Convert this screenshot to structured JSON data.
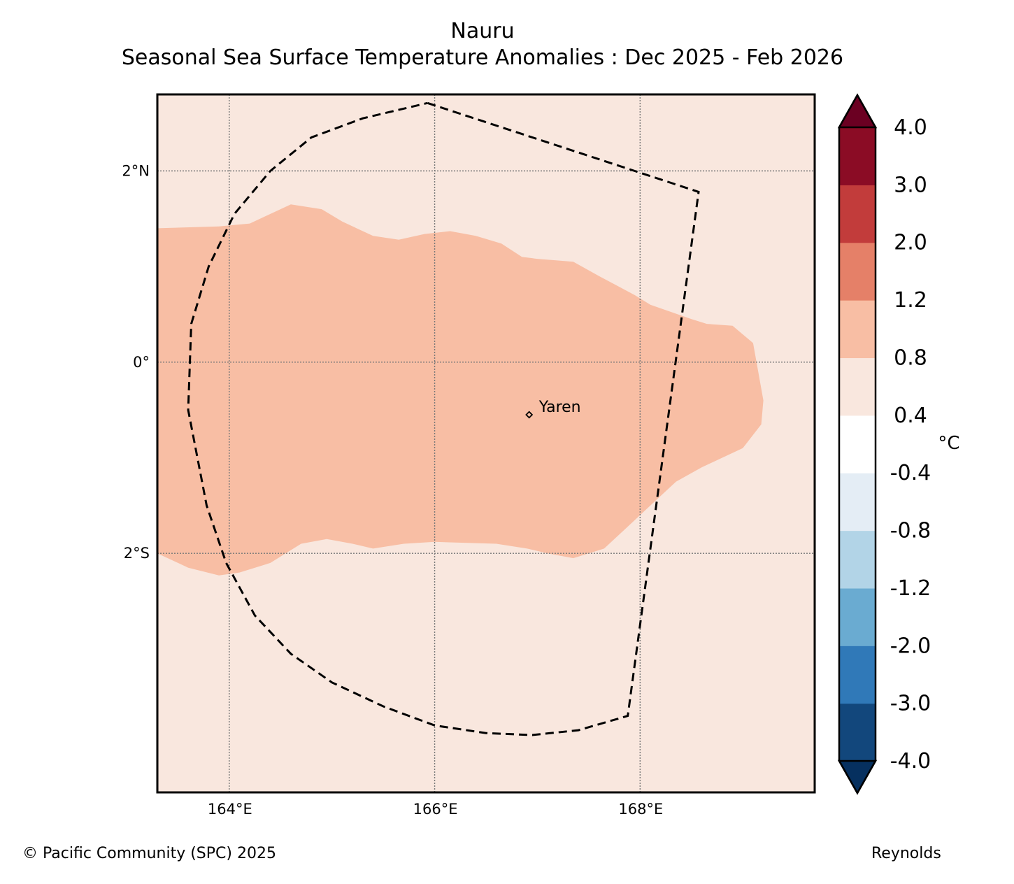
{
  "title": {
    "line1": "Nauru",
    "line2": "Seasonal Sea Surface Temperature Anomalies : Dec 2025 - Feb 2026"
  },
  "map": {
    "extent": {
      "lon": [
        163.3,
        169.7
      ],
      "lat": [
        -4.5,
        2.8
      ]
    },
    "lat_ticks": [
      {
        "value": 2,
        "label": "2°N"
      },
      {
        "value": 0,
        "label": "0°"
      },
      {
        "value": -2,
        "label": "2°S"
      }
    ],
    "lon_ticks": [
      {
        "value": 164,
        "label": "164°E"
      },
      {
        "value": 166,
        "label": "166°E"
      },
      {
        "value": 168,
        "label": "168°E"
      }
    ],
    "background_anomaly_class": "0.4 – 0.8",
    "anomaly_region_class": "0.8 – 1.2",
    "city": {
      "name": "Yaren",
      "lon": 166.92,
      "lat": -0.55
    },
    "eez_polygon": [
      [
        165.93,
        2.71
      ],
      [
        168.57,
        1.78
      ],
      [
        167.88,
        -3.7
      ],
      [
        167.4,
        -3.85
      ],
      [
        166.95,
        -3.9
      ],
      [
        166.5,
        -3.88
      ],
      [
        166.0,
        -3.8
      ],
      [
        165.5,
        -3.6
      ],
      [
        165.0,
        -3.35
      ],
      [
        164.6,
        -3.05
      ],
      [
        164.25,
        -2.65
      ],
      [
        163.97,
        -2.1
      ],
      [
        163.78,
        -1.5
      ],
      [
        163.6,
        -0.5
      ],
      [
        163.63,
        0.4
      ],
      [
        163.8,
        1.0
      ],
      [
        164.05,
        1.55
      ],
      [
        164.4,
        2.0
      ],
      [
        164.8,
        2.35
      ],
      [
        165.3,
        2.55
      ],
      [
        165.93,
        2.71
      ]
    ],
    "anomaly_region_polygon": [
      [
        163.3,
        1.4
      ],
      [
        163.9,
        1.42
      ],
      [
        164.2,
        1.45
      ],
      [
        164.6,
        1.65
      ],
      [
        164.9,
        1.6
      ],
      [
        165.1,
        1.47
      ],
      [
        165.4,
        1.32
      ],
      [
        165.65,
        1.28
      ],
      [
        165.9,
        1.34
      ],
      [
        166.15,
        1.37
      ],
      [
        166.4,
        1.32
      ],
      [
        166.65,
        1.24
      ],
      [
        166.85,
        1.1
      ],
      [
        167.0,
        1.08
      ],
      [
        167.35,
        1.05
      ],
      [
        167.6,
        0.9
      ],
      [
        167.95,
        0.7
      ],
      [
        168.1,
        0.6
      ],
      [
        168.5,
        0.45
      ],
      [
        168.65,
        0.4
      ],
      [
        168.9,
        0.38
      ],
      [
        169.1,
        0.2
      ],
      [
        169.2,
        -0.4
      ],
      [
        169.18,
        -0.65
      ],
      [
        169.0,
        -0.9
      ],
      [
        168.6,
        -1.1
      ],
      [
        168.35,
        -1.25
      ],
      [
        168.15,
        -1.45
      ],
      [
        167.95,
        -1.65
      ],
      [
        167.65,
        -1.95
      ],
      [
        167.5,
        -2.0
      ],
      [
        167.35,
        -2.05
      ],
      [
        167.1,
        -2.0
      ],
      [
        166.9,
        -1.95
      ],
      [
        166.6,
        -1.9
      ],
      [
        166.0,
        -1.88
      ],
      [
        165.7,
        -1.9
      ],
      [
        165.4,
        -1.95
      ],
      [
        165.2,
        -1.9
      ],
      [
        164.95,
        -1.85
      ],
      [
        164.7,
        -1.9
      ],
      [
        164.4,
        -2.1
      ],
      [
        164.1,
        -2.2
      ],
      [
        163.9,
        -2.23
      ],
      [
        163.6,
        -2.15
      ],
      [
        163.3,
        -2.0
      ]
    ]
  },
  "colorbar": {
    "unit": "°C",
    "levels": [
      "-4.0",
      "-3.0",
      "-2.0",
      "-1.2",
      "-0.8",
      "-0.4",
      "0.4",
      "0.8",
      "1.2",
      "2.0",
      "3.0",
      "4.0"
    ],
    "colors": [
      "#12477c",
      "#3079b8",
      "#6aabd1",
      "#b2d4e7",
      "#e4edf5",
      "#ffffff",
      "#f9e7de",
      "#f8bea4",
      "#e58068",
      "#c23c3b",
      "#8b0c25"
    ],
    "under_color": "#06305f",
    "over_color": "#6b0022"
  },
  "footer": {
    "copyright": "© Pacific Community (SPC) 2025",
    "source": "Reynolds"
  }
}
